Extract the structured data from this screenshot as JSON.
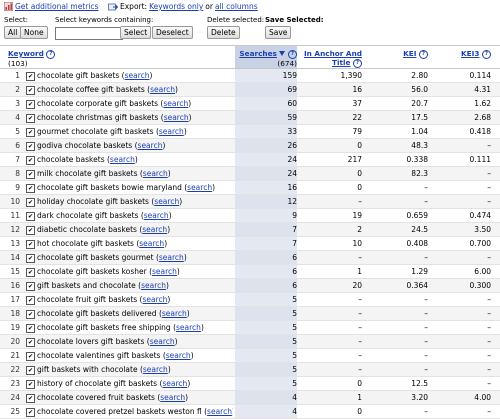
{
  "topbar": {
    "metrics_link": "Get additional metrics",
    "export_label": "Export:",
    "export_keywords": "Keywords only",
    "export_or": "or",
    "export_all": "all columns"
  },
  "controls": {
    "select_label": "Select:",
    "all_button": "All",
    "none_button": "None",
    "containing_label": "Select keywords containing:",
    "keyword_input_value": "",
    "select_button": "Select",
    "deselect_button": "Deselect",
    "delete_label": "Delete selected:",
    "delete_button": "Delete",
    "save_label": "Save Selected:",
    "save_button": "Save"
  },
  "table": {
    "headers": {
      "keyword": "Keyword",
      "keyword_count": "(103)",
      "searches": "Searches",
      "searches_count": "(674)",
      "anchor_line1": "In Anchor And",
      "anchor_line2": "Title",
      "kei": "KEI",
      "kei3": "KEI3",
      "help": "?"
    },
    "search_link": "search",
    "rows": [
      {
        "n": "1",
        "kw": "chocolate gift baskets",
        "s": "159",
        "a": "1,390",
        "k": "2.80",
        "k3": "0.114"
      },
      {
        "n": "2",
        "kw": "chocolate coffee gift baskets",
        "s": "69",
        "a": "16",
        "k": "56.0",
        "k3": "4.31"
      },
      {
        "n": "3",
        "kw": "chocolate corporate gift baskets",
        "s": "60",
        "a": "37",
        "k": "20.7",
        "k3": "1.62"
      },
      {
        "n": "4",
        "kw": "chocolate christmas gift baskets",
        "s": "59",
        "a": "22",
        "k": "17.5",
        "k3": "2.68"
      },
      {
        "n": "5",
        "kw": "gourmet chocolate gift baskets",
        "s": "33",
        "a": "79",
        "k": "1.04",
        "k3": "0.418"
      },
      {
        "n": "6",
        "kw": "godiva chocolate baskets",
        "s": "26",
        "a": "0",
        "k": "48.3",
        "k3": "–"
      },
      {
        "n": "7",
        "kw": "chocolate baskets",
        "s": "24",
        "a": "217",
        "k": "0.338",
        "k3": "0.111"
      },
      {
        "n": "8",
        "kw": "milk chocolate gift baskets",
        "s": "24",
        "a": "0",
        "k": "82.3",
        "k3": "–"
      },
      {
        "n": "9",
        "kw": "chocolate gift baskets bowie maryland",
        "s": "16",
        "a": "0",
        "k": "–",
        "k3": "–"
      },
      {
        "n": "10",
        "kw": "holiday chocolate gift baskets",
        "s": "12",
        "a": "–",
        "k": "–",
        "k3": "–"
      },
      {
        "n": "11",
        "kw": "dark chocolate gift baskets",
        "s": "9",
        "a": "19",
        "k": "0.659",
        "k3": "0.474"
      },
      {
        "n": "12",
        "kw": "diabetic chocolate baskets",
        "s": "7",
        "a": "2",
        "k": "24.5",
        "k3": "3.50"
      },
      {
        "n": "13",
        "kw": "hot chocolate gift baskets",
        "s": "7",
        "a": "10",
        "k": "0.408",
        "k3": "0.700"
      },
      {
        "n": "14",
        "kw": "chocolate gift baskets gourmet",
        "s": "6",
        "a": "–",
        "k": "–",
        "k3": "–"
      },
      {
        "n": "15",
        "kw": "chocolate gift baskets kosher",
        "s": "6",
        "a": "1",
        "k": "1.29",
        "k3": "6.00"
      },
      {
        "n": "16",
        "kw": "gift baskets and chocolate",
        "s": "6",
        "a": "20",
        "k": "0.364",
        "k3": "0.300"
      },
      {
        "n": "17",
        "kw": "chocolate fruit gift baskets",
        "s": "5",
        "a": "–",
        "k": "–",
        "k3": "–"
      },
      {
        "n": "18",
        "kw": "chocolate gift baskets delivered",
        "s": "5",
        "a": "–",
        "k": "–",
        "k3": "–"
      },
      {
        "n": "19",
        "kw": "chocolate gift baskets free shipping",
        "s": "5",
        "a": "–",
        "k": "–",
        "k3": "–"
      },
      {
        "n": "20",
        "kw": "chocolate lovers gift baskets",
        "s": "5",
        "a": "–",
        "k": "–",
        "k3": "–"
      },
      {
        "n": "21",
        "kw": "chocolate valentines gift baskets",
        "s": "5",
        "a": "–",
        "k": "–",
        "k3": "–"
      },
      {
        "n": "22",
        "kw": "gift baskets with chocolate",
        "s": "5",
        "a": "–",
        "k": "–",
        "k3": "–"
      },
      {
        "n": "23",
        "kw": "history of chocolate gift baskets",
        "s": "5",
        "a": "0",
        "k": "12.5",
        "k3": "–"
      },
      {
        "n": "24",
        "kw": "chocolate covered fruit baskets",
        "s": "4",
        "a": "1",
        "k": "3.20",
        "k3": "4.00"
      },
      {
        "n": "25",
        "kw": "chocolate covered pretzel baskets weston fl",
        "s": "4",
        "a": "0",
        "k": "–",
        "k3": "–"
      }
    ]
  },
  "colors": {
    "link": "#1a3fb0",
    "sorted_column": "#c9d2e4",
    "row_alt": "#f4f4f4"
  },
  "icons": {
    "metrics": "metrics-chart-icon",
    "export": "export-icon",
    "sort": "sort-down-arrow-icon",
    "check": "checkmark-icon"
  }
}
